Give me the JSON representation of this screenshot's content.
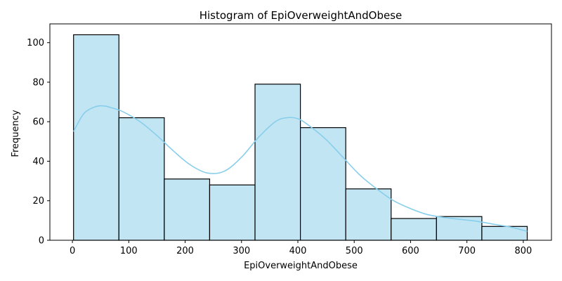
{
  "chart_data": {
    "type": "bar",
    "subtype": "histogram",
    "title": "Histogram of EpiOverweightAndObese",
    "xlabel": "EpiOverweightAndObese",
    "ylabel": "Frequency",
    "xlim": [
      -40,
      850
    ],
    "ylim": [
      0,
      109.5
    ],
    "xticks": [
      0,
      100,
      200,
      300,
      400,
      500,
      600,
      700,
      800
    ],
    "yticks": [
      0,
      20,
      40,
      60,
      80,
      100
    ],
    "bins": [
      {
        "x0": 2,
        "x1": 82.5,
        "count": 104
      },
      {
        "x0": 82.5,
        "x1": 163,
        "count": 62
      },
      {
        "x0": 163,
        "x1": 243.5,
        "count": 31
      },
      {
        "x0": 243.5,
        "x1": 324,
        "count": 28
      },
      {
        "x0": 324,
        "x1": 404.5,
        "count": 79
      },
      {
        "x0": 404.5,
        "x1": 485,
        "count": 57
      },
      {
        "x0": 485,
        "x1": 565.5,
        "count": 26
      },
      {
        "x0": 565.5,
        "x1": 646,
        "count": 11
      },
      {
        "x0": 646,
        "x1": 726.5,
        "count": 12
      },
      {
        "x0": 726.5,
        "x1": 807,
        "count": 7
      }
    ],
    "kde": {
      "x": [
        2,
        20,
        40,
        55,
        70,
        90,
        120,
        150,
        180,
        210,
        240,
        270,
        300,
        330,
        360,
        380,
        400,
        420,
        450,
        480,
        510,
        540,
        570,
        600,
        630,
        660,
        690,
        720,
        750,
        780,
        807
      ],
      "y": [
        55,
        64,
        67.5,
        68,
        67,
        65,
        60,
        53,
        45,
        38,
        34,
        35,
        42,
        52,
        60,
        62,
        61.5,
        58,
        51,
        42,
        33,
        26,
        20,
        16,
        13,
        11.5,
        10.5,
        9.5,
        8,
        6.5,
        4.5
      ]
    },
    "colors": {
      "bar_fill": "#c2e5f4",
      "bar_edge": "#000000",
      "kde_line": "#87ceeb"
    },
    "grid": false,
    "legend": "none"
  }
}
